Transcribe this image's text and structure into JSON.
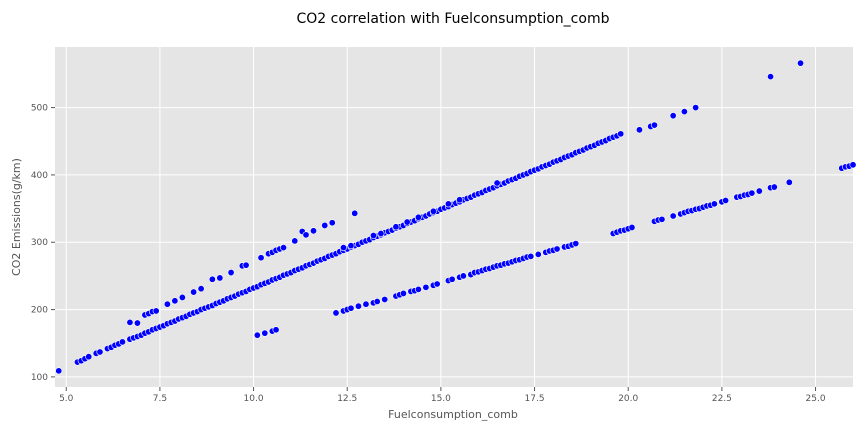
{
  "chart_data": {
    "type": "scatter",
    "title": "CO2 correlation with Fuelconsumption_comb",
    "xlabel": "Fuelconsumption_comb",
    "ylabel": "CO2 Emissions(g/km)",
    "xlim": [
      4.7,
      26.0
    ],
    "ylim": [
      85,
      590
    ],
    "xticks": [
      5.0,
      7.5,
      10.0,
      12.5,
      15.0,
      17.5,
      20.0,
      22.5,
      25.0
    ],
    "xtick_labels": [
      "5.0",
      "7.5",
      "10.0",
      "12.5",
      "15.0",
      "17.5",
      "20.0",
      "22.5",
      "25.0"
    ],
    "yticks": [
      100,
      200,
      300,
      400,
      500
    ],
    "ytick_labels": [
      "100",
      "200",
      "300",
      "400",
      "500"
    ],
    "grid": true,
    "colors": {
      "marker": "#0000ff",
      "marker_edge": "#ffffff",
      "background": "#e5e5e5",
      "grid": "#ffffff"
    },
    "series": [
      {
        "points": [
          [
            4.8,
            109
          ],
          [
            5.3,
            122
          ],
          [
            5.4,
            124
          ],
          [
            5.5,
            127
          ],
          [
            5.6,
            130
          ],
          [
            5.8,
            135
          ],
          [
            5.9,
            137
          ],
          [
            6.1,
            142
          ],
          [
            6.2,
            144
          ],
          [
            6.3,
            147
          ],
          [
            6.4,
            149
          ],
          [
            6.5,
            152
          ],
          [
            6.7,
            156
          ],
          [
            6.8,
            158
          ],
          [
            6.9,
            160
          ],
          [
            7.0,
            162
          ],
          [
            7.1,
            165
          ],
          [
            7.2,
            167
          ],
          [
            7.3,
            170
          ],
          [
            7.4,
            172
          ],
          [
            7.5,
            174
          ],
          [
            7.6,
            176
          ],
          [
            7.7,
            179
          ],
          [
            7.8,
            181
          ],
          [
            7.9,
            183
          ],
          [
            8.0,
            186
          ],
          [
            8.1,
            188
          ],
          [
            8.2,
            190
          ],
          [
            8.3,
            193
          ],
          [
            8.4,
            195
          ],
          [
            8.5,
            197
          ],
          [
            8.6,
            200
          ],
          [
            8.7,
            202
          ],
          [
            8.8,
            204
          ],
          [
            8.9,
            206
          ],
          [
            9.0,
            209
          ],
          [
            9.1,
            211
          ],
          [
            9.2,
            213
          ],
          [
            9.3,
            216
          ],
          [
            9.4,
            218
          ],
          [
            9.5,
            220
          ],
          [
            9.6,
            223
          ],
          [
            9.7,
            225
          ],
          [
            9.8,
            227
          ],
          [
            9.9,
            230
          ],
          [
            10.0,
            232
          ],
          [
            10.1,
            234
          ],
          [
            10.2,
            237
          ],
          [
            10.3,
            239
          ],
          [
            10.4,
            241
          ],
          [
            10.5,
            244
          ],
          [
            10.6,
            246
          ],
          [
            10.7,
            248
          ],
          [
            10.8,
            251
          ],
          [
            10.9,
            253
          ],
          [
            11.0,
            255
          ],
          [
            11.1,
            258
          ],
          [
            11.2,
            260
          ],
          [
            11.3,
            262
          ],
          [
            11.4,
            265
          ],
          [
            11.5,
            267
          ],
          [
            11.6,
            269
          ],
          [
            11.7,
            272
          ],
          [
            11.8,
            274
          ],
          [
            11.9,
            276
          ],
          [
            12.0,
            279
          ],
          [
            12.1,
            281
          ],
          [
            12.2,
            283
          ],
          [
            12.3,
            286
          ],
          [
            12.4,
            288
          ],
          [
            12.5,
            290
          ],
          [
            12.6,
            293
          ],
          [
            12.7,
            295
          ],
          [
            12.8,
            297
          ],
          [
            12.9,
            300
          ],
          [
            13.0,
            302
          ],
          [
            13.1,
            304
          ],
          [
            13.2,
            307
          ],
          [
            13.3,
            309
          ],
          [
            13.4,
            311
          ],
          [
            13.5,
            314
          ],
          [
            13.6,
            316
          ],
          [
            13.7,
            318
          ],
          [
            13.8,
            321
          ],
          [
            13.9,
            323
          ],
          [
            14.0,
            325
          ],
          [
            14.1,
            328
          ],
          [
            14.2,
            330
          ],
          [
            14.3,
            332
          ],
          [
            14.4,
            335
          ],
          [
            14.5,
            337
          ],
          [
            14.6,
            339
          ],
          [
            14.7,
            342
          ],
          [
            14.8,
            344
          ],
          [
            14.9,
            346
          ],
          [
            15.0,
            349
          ],
          [
            15.1,
            351
          ],
          [
            15.2,
            353
          ],
          [
            15.3,
            356
          ],
          [
            15.4,
            358
          ],
          [
            15.5,
            360
          ],
          [
            15.6,
            363
          ],
          [
            15.7,
            365
          ],
          [
            15.8,
            367
          ],
          [
            15.9,
            370
          ],
          [
            16.0,
            372
          ],
          [
            16.1,
            374
          ],
          [
            16.2,
            377
          ],
          [
            16.3,
            379
          ],
          [
            16.4,
            381
          ],
          [
            16.5,
            384
          ],
          [
            16.6,
            386
          ],
          [
            16.7,
            388
          ],
          [
            16.8,
            391
          ],
          [
            16.9,
            393
          ],
          [
            17.0,
            395
          ],
          [
            17.1,
            398
          ],
          [
            17.2,
            400
          ],
          [
            17.3,
            402
          ],
          [
            17.4,
            405
          ],
          [
            17.5,
            407
          ],
          [
            17.6,
            409
          ],
          [
            17.7,
            412
          ],
          [
            17.8,
            414
          ],
          [
            17.9,
            416
          ],
          [
            18.0,
            419
          ],
          [
            18.1,
            421
          ],
          [
            18.2,
            423
          ],
          [
            18.3,
            426
          ],
          [
            18.4,
            428
          ],
          [
            18.5,
            430
          ],
          [
            18.6,
            433
          ],
          [
            18.7,
            435
          ],
          [
            18.8,
            437
          ],
          [
            18.9,
            440
          ],
          [
            19.0,
            442
          ],
          [
            19.1,
            444
          ],
          [
            19.2,
            447
          ],
          [
            19.3,
            449
          ],
          [
            19.4,
            451
          ],
          [
            19.5,
            454
          ],
          [
            19.6,
            456
          ],
          [
            19.7,
            458
          ],
          [
            19.8,
            461
          ],
          [
            6.7,
            181
          ],
          [
            6.9,
            180
          ],
          [
            7.1,
            192
          ],
          [
            7.2,
            194
          ],
          [
            7.3,
            197
          ],
          [
            7.4,
            198
          ],
          [
            7.7,
            208
          ],
          [
            7.9,
            213
          ],
          [
            8.1,
            218
          ],
          [
            8.4,
            226
          ],
          [
            8.6,
            231
          ],
          [
            8.9,
            245
          ],
          [
            9.1,
            247
          ],
          [
            9.4,
            255
          ],
          [
            9.7,
            265
          ],
          [
            9.8,
            266
          ],
          [
            10.2,
            277
          ],
          [
            10.4,
            283
          ],
          [
            10.5,
            285
          ],
          [
            10.6,
            288
          ],
          [
            10.7,
            290
          ],
          [
            10.8,
            292
          ],
          [
            11.1,
            302
          ],
          [
            11.3,
            316
          ],
          [
            11.4,
            311
          ],
          [
            11.6,
            317
          ],
          [
            11.9,
            325
          ],
          [
            12.1,
            329
          ],
          [
            12.7,
            343
          ],
          [
            12.4,
            292
          ],
          [
            12.6,
            295
          ],
          [
            13.2,
            310
          ],
          [
            13.4,
            313
          ],
          [
            13.8,
            323
          ],
          [
            14.1,
            330
          ],
          [
            14.4,
            337
          ],
          [
            14.8,
            346
          ],
          [
            15.2,
            357
          ],
          [
            15.5,
            363
          ],
          [
            16.5,
            388
          ],
          [
            20.3,
            467
          ],
          [
            20.6,
            472
          ],
          [
            20.7,
            474
          ],
          [
            21.2,
            488
          ],
          [
            21.5,
            494
          ],
          [
            21.8,
            500
          ],
          [
            23.8,
            546
          ],
          [
            24.6,
            566
          ],
          [
            10.1,
            162
          ],
          [
            10.3,
            165
          ],
          [
            10.5,
            168
          ],
          [
            10.6,
            170
          ],
          [
            12.2,
            195
          ],
          [
            12.4,
            198
          ],
          [
            12.5,
            200
          ],
          [
            12.6,
            202
          ],
          [
            12.8,
            205
          ],
          [
            13.0,
            208
          ],
          [
            13.2,
            210
          ],
          [
            13.3,
            212
          ],
          [
            13.5,
            215
          ],
          [
            13.8,
            220
          ],
          [
            13.9,
            222
          ],
          [
            14.0,
            224
          ],
          [
            14.2,
            227
          ],
          [
            14.3,
            228
          ],
          [
            14.4,
            230
          ],
          [
            14.6,
            233
          ],
          [
            14.8,
            236
          ],
          [
            14.9,
            238
          ],
          [
            15.2,
            243
          ],
          [
            15.3,
            245
          ],
          [
            15.5,
            248
          ],
          [
            15.6,
            250
          ],
          [
            15.8,
            252
          ],
          [
            15.9,
            255
          ],
          [
            16.0,
            256
          ],
          [
            16.1,
            258
          ],
          [
            16.2,
            260
          ],
          [
            16.3,
            261
          ],
          [
            16.4,
            263
          ],
          [
            16.5,
            265
          ],
          [
            16.6,
            266
          ],
          [
            16.7,
            268
          ],
          [
            16.8,
            269
          ],
          [
            16.9,
            271
          ],
          [
            17.0,
            273
          ],
          [
            17.1,
            274
          ],
          [
            17.2,
            276
          ],
          [
            17.3,
            278
          ],
          [
            17.4,
            279
          ],
          [
            17.6,
            282
          ],
          [
            17.8,
            285
          ],
          [
            17.9,
            287
          ],
          [
            18.0,
            288
          ],
          [
            18.1,
            290
          ],
          [
            18.3,
            293
          ],
          [
            18.4,
            294
          ],
          [
            18.5,
            296
          ],
          [
            18.6,
            298
          ],
          [
            19.6,
            313
          ],
          [
            19.7,
            315
          ],
          [
            19.8,
            317
          ],
          [
            19.9,
            318
          ],
          [
            20.0,
            320
          ],
          [
            20.1,
            322
          ],
          [
            20.7,
            331
          ],
          [
            20.8,
            333
          ],
          [
            20.9,
            334
          ],
          [
            21.2,
            339
          ],
          [
            21.4,
            342
          ],
          [
            21.5,
            344
          ],
          [
            21.6,
            346
          ],
          [
            21.7,
            347
          ],
          [
            21.8,
            349
          ],
          [
            21.9,
            350
          ],
          [
            22.0,
            352
          ],
          [
            22.1,
            354
          ],
          [
            22.2,
            355
          ],
          [
            22.3,
            357
          ],
          [
            22.5,
            360
          ],
          [
            22.6,
            362
          ],
          [
            22.9,
            367
          ],
          [
            23.0,
            368
          ],
          [
            23.1,
            370
          ],
          [
            23.2,
            371
          ],
          [
            23.3,
            373
          ],
          [
            23.5,
            376
          ],
          [
            23.8,
            381
          ],
          [
            23.9,
            382
          ],
          [
            24.3,
            389
          ],
          [
            25.7,
            410
          ],
          [
            25.8,
            412
          ],
          [
            25.9,
            413
          ],
          [
            26.0,
            415
          ]
        ]
      }
    ]
  }
}
